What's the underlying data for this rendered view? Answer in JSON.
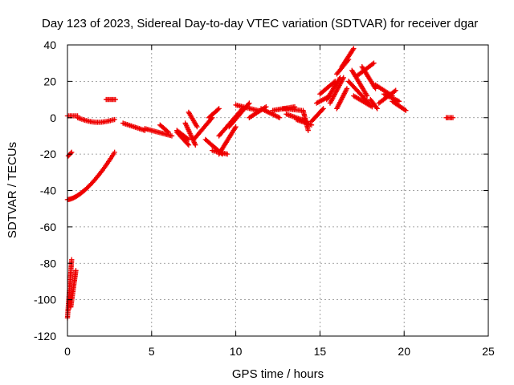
{
  "chart_data": {
    "type": "scatter",
    "title": "Day 123 of 2023, Sidereal Day-to-day VTEC variation (SDTVAR) for receiver dgar",
    "xlabel": "GPS time / hours",
    "ylabel": "SDTVAR / TECUs",
    "xlim": [
      0,
      25
    ],
    "ylim": [
      -120,
      40
    ],
    "xticks": [
      "0",
      "5",
      "10",
      "15",
      "20",
      "25"
    ],
    "yticks": [
      "40",
      "20",
      "0",
      "-20",
      "-40",
      "-60",
      "-80",
      "-100",
      "-120"
    ],
    "grid": true,
    "marker": "plus",
    "color": "#ee0000",
    "series": [
      {
        "name": "SDTVAR",
        "segments": [
          {
            "x": [
              0.0,
              2.8
            ],
            "y": [
              -45,
              -19
            ],
            "curve": "convex"
          },
          {
            "x": [
              0.0,
              0.25
            ],
            "y": [
              -110,
              -78
            ]
          },
          {
            "x": [
              0.2,
              0.5
            ],
            "y": [
              -104,
              -84
            ]
          },
          {
            "x": [
              0.05,
              0.25
            ],
            "y": [
              -21,
              -19
            ]
          },
          {
            "x": [
              0.0,
              0.6
            ],
            "y": [
              1,
              1
            ]
          },
          {
            "x": [
              0.6,
              2.8
            ],
            "y": [
              0,
              -1
            ],
            "curve": "sag"
          },
          {
            "x": [
              2.3,
              2.85
            ],
            "y": [
              10,
              10
            ]
          },
          {
            "x": [
              3.3,
              4.6
            ],
            "y": [
              -3,
              -7
            ]
          },
          {
            "x": [
              4.6,
              6.2
            ],
            "y": [
              -6,
              -10
            ]
          },
          {
            "x": [
              5.5,
              6.0
            ],
            "y": [
              -4,
              -8
            ]
          },
          {
            "x": [
              6.5,
              7.2
            ],
            "y": [
              -7,
              -12
            ]
          },
          {
            "x": [
              7.0,
              7.6
            ],
            "y": [
              -3,
              -15
            ]
          },
          {
            "x": [
              7.2,
              7.7
            ],
            "y": [
              3,
              -5
            ]
          },
          {
            "x": [
              6.7,
              7.2
            ],
            "y": [
              -10,
              -15
            ]
          },
          {
            "x": [
              6.5,
              7.0
            ],
            "y": [
              -8,
              -12
            ]
          },
          {
            "x": [
              7.5,
              8.6
            ],
            "y": [
              -12,
              0
            ]
          },
          {
            "x": [
              8.4,
              9.0
            ],
            "y": [
              0,
              5
            ]
          },
          {
            "x": [
              8.2,
              9.2
            ],
            "y": [
              -12,
              -20
            ]
          },
          {
            "x": [
              8.6,
              9.5
            ],
            "y": [
              -18,
              -20
            ]
          },
          {
            "x": [
              9.0,
              10.0
            ],
            "y": [
              -20,
              -5
            ]
          },
          {
            "x": [
              9.6,
              10.8
            ],
            "y": [
              -5,
              8
            ]
          },
          {
            "x": [
              9.0,
              10.4
            ],
            "y": [
              -10,
              5
            ]
          },
          {
            "x": [
              10.0,
              11.3
            ],
            "y": [
              7,
              4
            ]
          },
          {
            "x": [
              10.8,
              11.8
            ],
            "y": [
              0,
              6
            ]
          },
          {
            "x": [
              11.5,
              12.6
            ],
            "y": [
              5,
              0
            ]
          },
          {
            "x": [
              12.2,
              13.5
            ],
            "y": [
              4,
              6
            ]
          },
          {
            "x": [
              12.8,
              13.9
            ],
            "y": [
              5,
              4
            ]
          },
          {
            "x": [
              13.0,
              14.2
            ],
            "y": [
              2,
              -2
            ]
          },
          {
            "x": [
              13.6,
              14.5
            ],
            "y": [
              -1,
              -4
            ]
          },
          {
            "x": [
              14.0,
              14.3
            ],
            "y": [
              4,
              -7
            ]
          },
          {
            "x": [
              14.5,
              15.2
            ],
            "y": [
              -2,
              5
            ]
          },
          {
            "x": [
              14.8,
              15.6
            ],
            "y": [
              8,
              12
            ]
          },
          {
            "x": [
              15.0,
              15.9
            ],
            "y": [
              13,
              20
            ]
          },
          {
            "x": [
              15.4,
              16.2
            ],
            "y": [
              10,
              22
            ]
          },
          {
            "x": [
              16.0,
              16.7
            ],
            "y": [
              24,
              32
            ]
          },
          {
            "x": [
              16.3,
              17.0
            ],
            "y": [
              28,
              38
            ]
          },
          {
            "x": [
              15.6,
              16.4
            ],
            "y": [
              8,
              22
            ]
          },
          {
            "x": [
              16.0,
              16.6
            ],
            "y": [
              5,
              16
            ]
          },
          {
            "x": [
              16.7,
              17.9
            ],
            "y": [
              20,
              8
            ]
          },
          {
            "x": [
              17.0,
              18.1
            ],
            "y": [
              12,
              6
            ]
          },
          {
            "x": [
              16.9,
              17.8
            ],
            "y": [
              26,
              12
            ]
          },
          {
            "x": [
              17.2,
              18.2
            ],
            "y": [
              23,
              30
            ]
          },
          {
            "x": [
              17.5,
              18.3
            ],
            "y": [
              28,
              16
            ]
          },
          {
            "x": [
              18.0,
              18.4
            ],
            "y": [
              10,
              5
            ]
          },
          {
            "x": [
              18.3,
              19.3
            ],
            "y": [
              18,
              12
            ]
          },
          {
            "x": [
              18.8,
              19.7
            ],
            "y": [
              13,
              9
            ]
          },
          {
            "x": [
              19.3,
              20.1
            ],
            "y": [
              9,
              4
            ]
          },
          {
            "x": [
              18.5,
              19.5
            ],
            "y": [
              8,
              15
            ]
          },
          {
            "x": [
              22.5,
              22.9
            ],
            "y": [
              0,
              0
            ]
          }
        ]
      }
    ]
  }
}
